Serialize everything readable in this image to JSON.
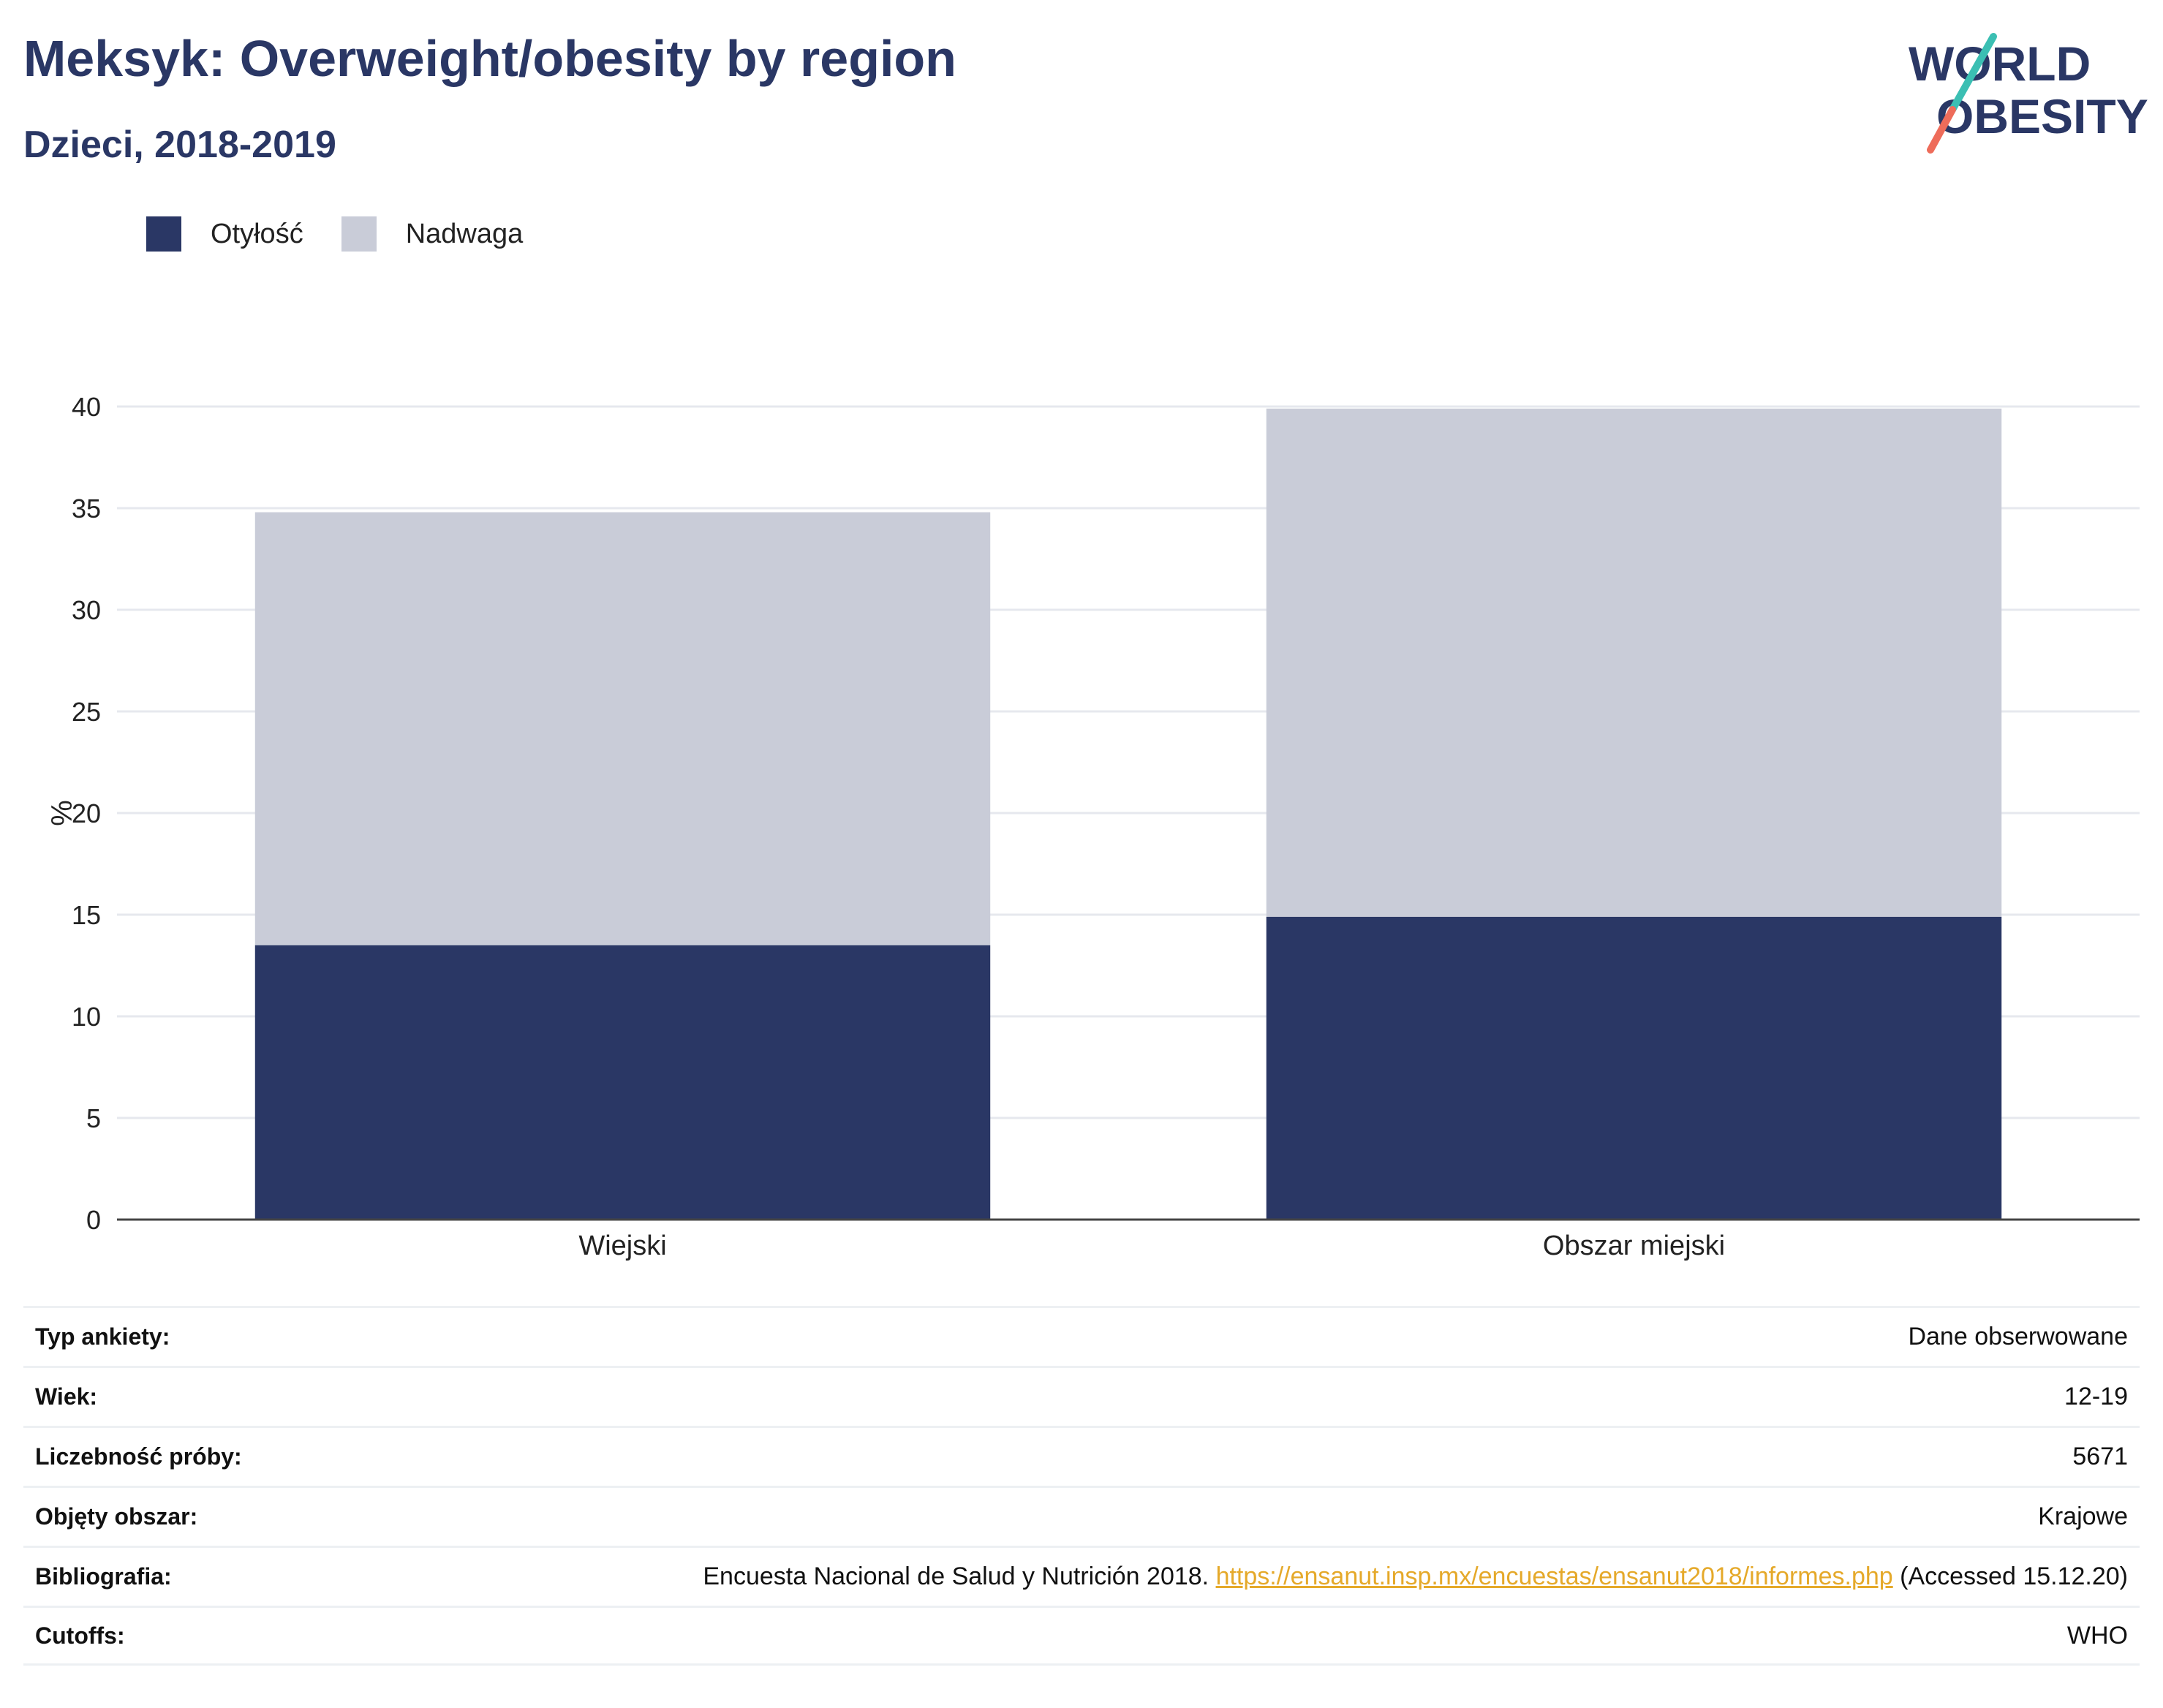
{
  "header": {
    "title": "Meksyk: Overweight/obesity by region",
    "subtitle": "Dzieci, 2018-2019"
  },
  "logo": {
    "line1": "WORLD",
    "line2": "OBESITY"
  },
  "chart_data": {
    "type": "bar",
    "stacked": true,
    "categories": [
      "Wiejski",
      "Obszar miejski"
    ],
    "series": [
      {
        "name": "Otyłość",
        "values": [
          13.5,
          14.9
        ],
        "color": "#2a3765"
      },
      {
        "name": "Nadwaga",
        "values": [
          21.3,
          25.0
        ],
        "color": "#c9ccd8"
      }
    ],
    "ylabel": "%",
    "ylim": [
      0,
      40
    ],
    "yticks": [
      0,
      5,
      10,
      15,
      20,
      25,
      30,
      35,
      40
    ],
    "grid": true,
    "legend_position": "top-left"
  },
  "info": {
    "rows": [
      {
        "key": "Typ ankiety:",
        "value": "Dane obserwowane"
      },
      {
        "key": "Wiek:",
        "value": "12-19"
      },
      {
        "key": "Liczebność próby:",
        "value": "5671"
      },
      {
        "key": "Objęty obszar:",
        "value": "Krajowe"
      },
      {
        "key": "Bibliografia:",
        "value_pre": "Encuesta Nacional de Salud y Nutrición 2018. ",
        "link": "https://ensanut.insp.mx/encuestas/ensanut2018/informes.php",
        "value_post": " (Accessed 15.12.20)"
      },
      {
        "key": "Cutoffs:",
        "value": "WHO"
      }
    ]
  }
}
